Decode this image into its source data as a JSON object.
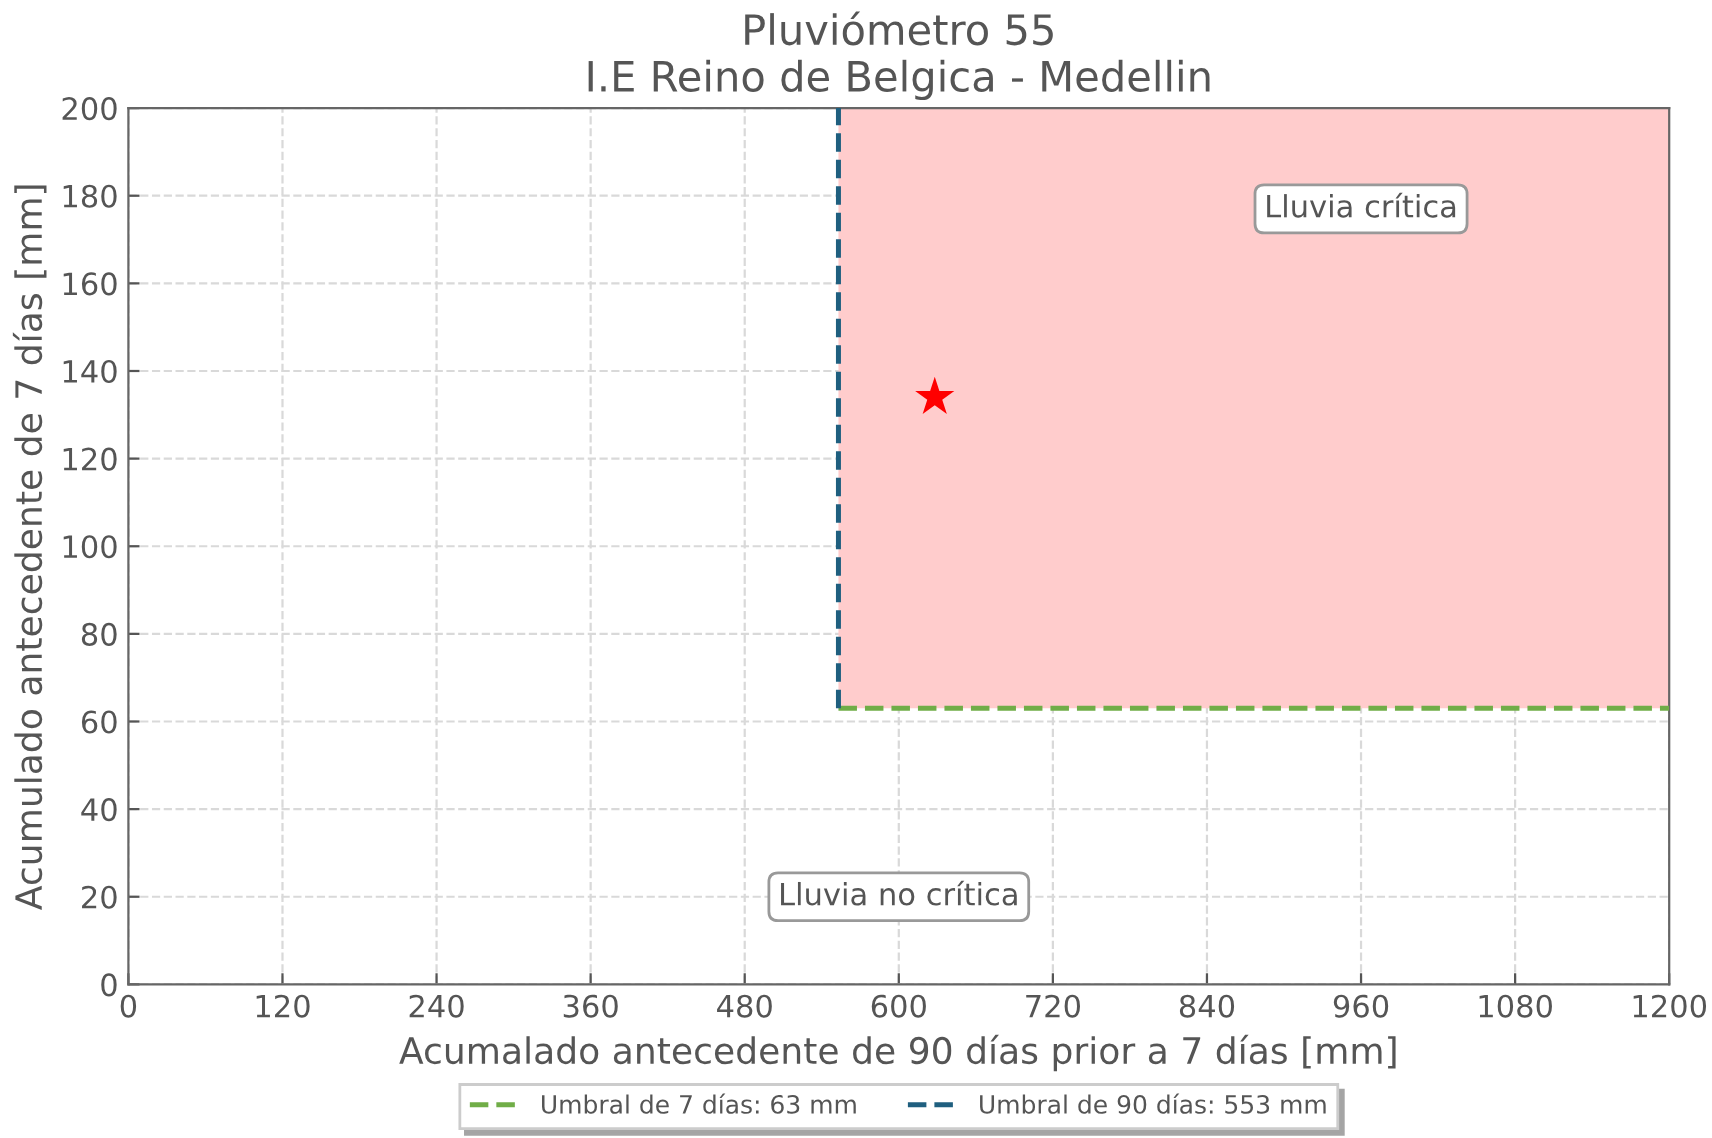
{
  "chart_data": {
    "type": "scatter",
    "title": "Pluviómetro 55\nI.E Reino de Belgica - Medellin",
    "xlabel": "Acumalado antecedente de 90 días prior a 7 días [mm]",
    "ylabel": "Acumulado antecedente de 7 días [mm]",
    "xlim": [
      0,
      1200
    ],
    "xticks": [
      0,
      120,
      240,
      360,
      480,
      600,
      720,
      840,
      960,
      1080,
      1200
    ],
    "ylim": [
      0,
      200
    ],
    "yticks": [
      0,
      20,
      40,
      60,
      80,
      100,
      120,
      140,
      160,
      180,
      200
    ],
    "grid": true,
    "legend": "bottom",
    "bands": [
      {
        "axis": "x",
        "from": 553,
        "to": 1200,
        "color": "#ffcccc"
      }
    ],
    "series": [
      {
        "type": "line",
        "name": "Umbral de 7 días: 63 mm",
        "color": "#70ad47",
        "line_style": "dashed",
        "marker": "none",
        "x": [
          553,
          1200
        ],
        "values": [
          63,
          63
        ]
      },
      {
        "type": "line",
        "name": "Umbral de 90 días: 553 mm",
        "color": "#1f5f7f",
        "line_style": "dashed",
        "marker": "none",
        "x": [
          553,
          553
        ],
        "values": [
          63,
          200
        ]
      },
      {
        "color": "#ff0000",
        "marker": "star",
        "x": [
          628
        ],
        "values": [
          134
        ]
      }
    ],
    "annotations": [
      "Lluvia crítica",
      "Lluvia no crítica"
    ]
  }
}
